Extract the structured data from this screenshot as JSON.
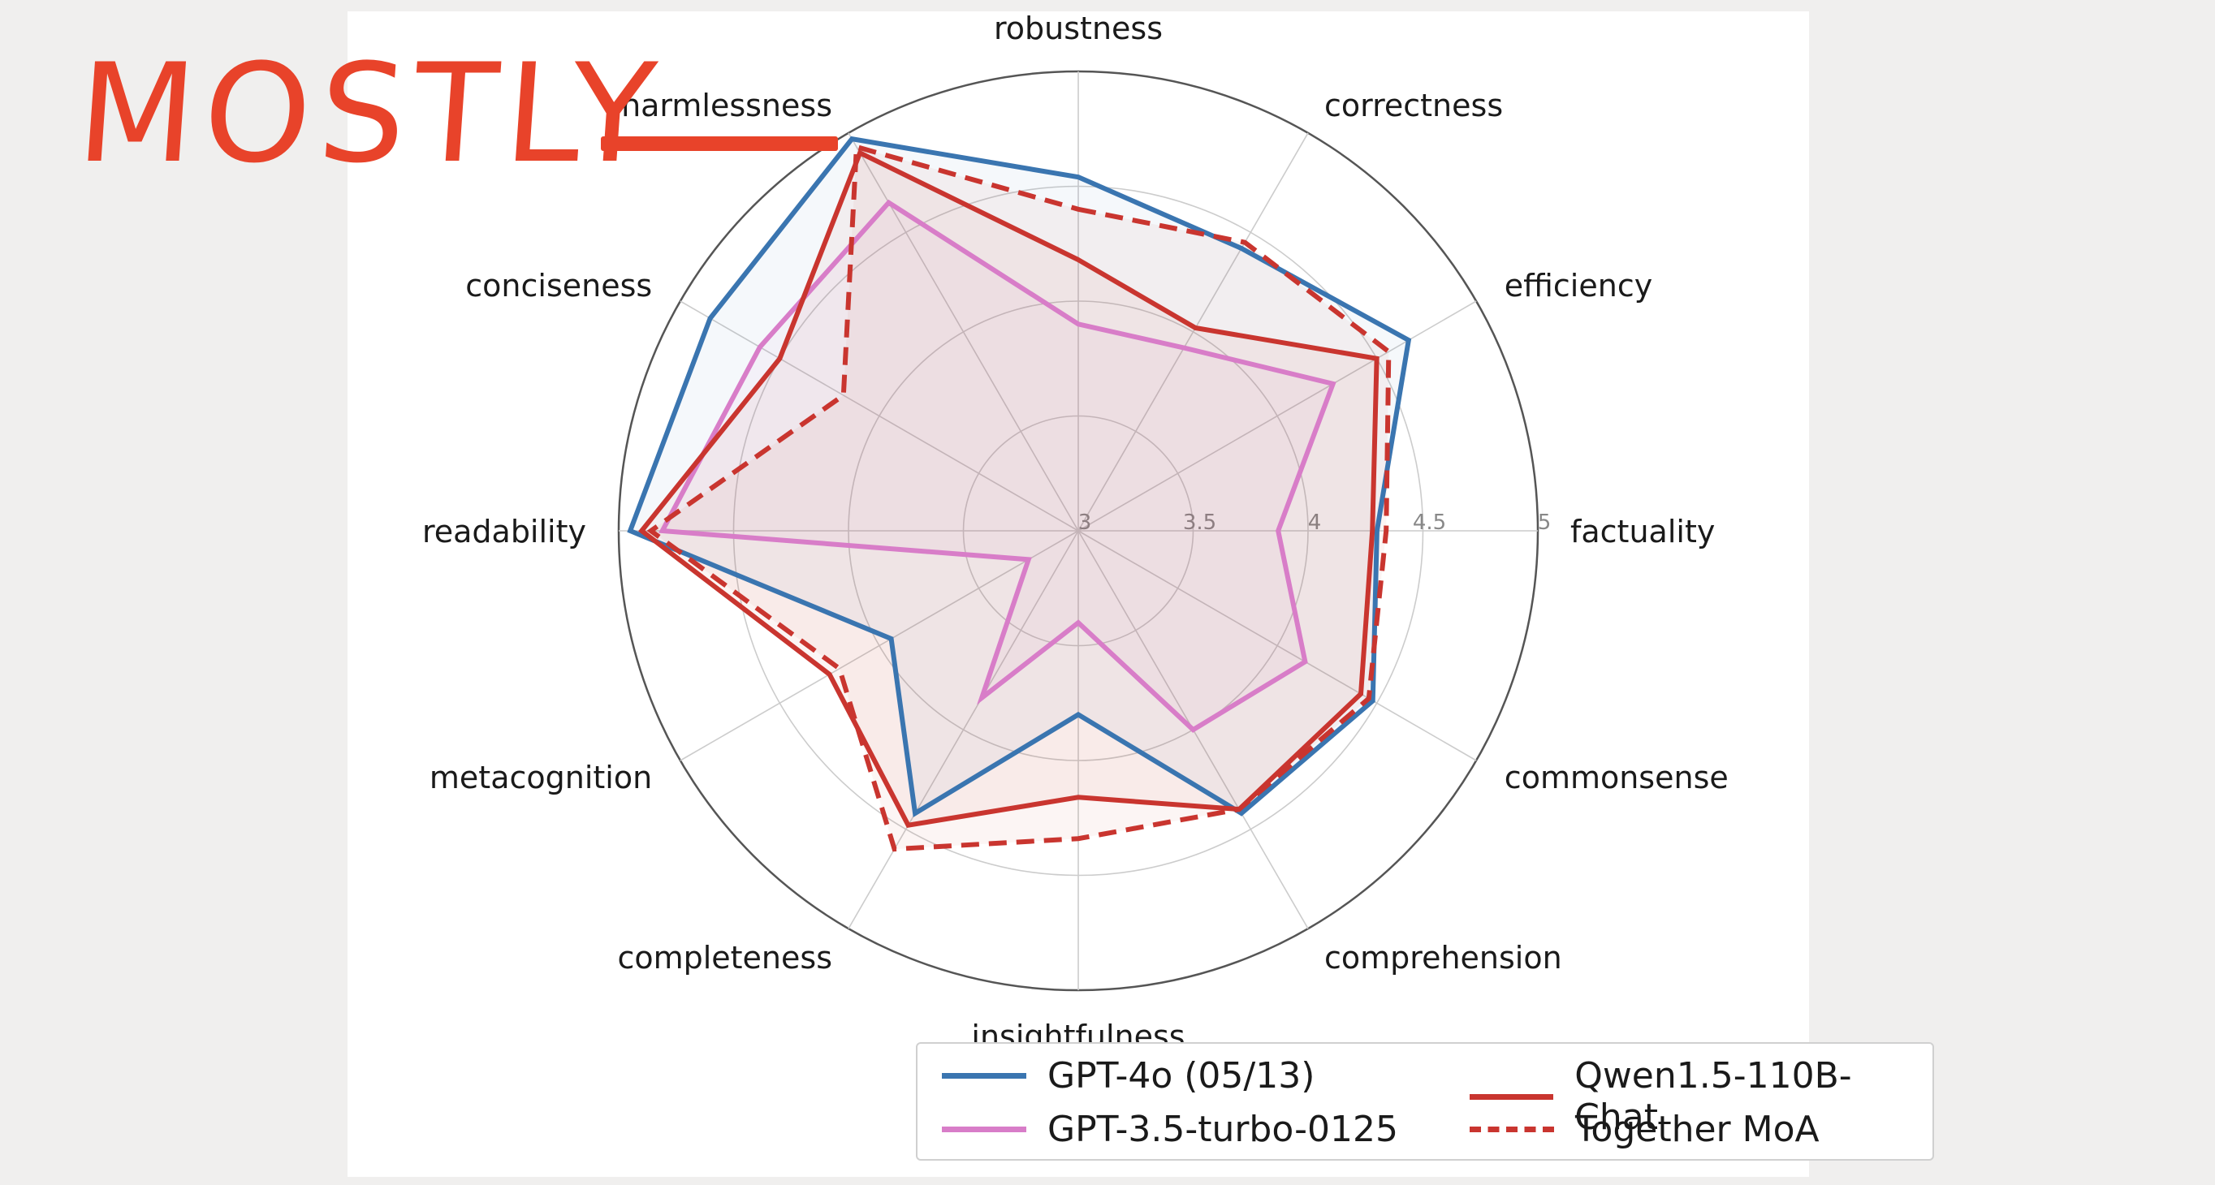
{
  "overlay": {
    "text": "MOSTLY",
    "color": "#e8432a"
  },
  "chart_data": {
    "type": "radar",
    "axes": [
      "robustness",
      "correctness",
      "efficiency",
      "factuality",
      "commonsense",
      "comprehension",
      "insightfulness",
      "completeness",
      "metacognition",
      "readability",
      "conciseness",
      "harmlessness"
    ],
    "rlim": [
      3,
      5
    ],
    "tick_labels": [
      "3",
      "3.5",
      "4",
      "4.5",
      "5"
    ],
    "grid": true,
    "legend_position": "bottom",
    "series": [
      {
        "name": "GPT-4o (05/13)",
        "color": "#3a75b0",
        "dash": false,
        "values": [
          4.54,
          4.42,
          4.66,
          4.3,
          4.48,
          4.42,
          3.8,
          4.42,
          3.94,
          4.95,
          4.85,
          4.97
        ]
      },
      {
        "name": "GPT-3.5-turbo-0125",
        "color": "#d87dc8",
        "dash": false,
        "values": [
          3.9,
          3.92,
          4.28,
          3.87,
          4.14,
          4.0,
          3.4,
          3.84,
          3.25,
          4.81,
          4.6,
          4.65
        ]
      },
      {
        "name": "Qwen1.5-110B-Chat",
        "color": "#c9352f",
        "dash": false,
        "values": [
          4.18,
          4.02,
          4.5,
          4.28,
          4.42,
          4.4,
          4.16,
          4.48,
          4.25,
          4.9,
          4.5,
          4.9
        ]
      },
      {
        "name": "Together MoA",
        "color": "#c9352f",
        "dash": true,
        "values": [
          4.4,
          4.45,
          4.56,
          4.34,
          4.46,
          4.4,
          4.34,
          4.6,
          4.2,
          4.86,
          4.18,
          4.93
        ]
      }
    ]
  }
}
